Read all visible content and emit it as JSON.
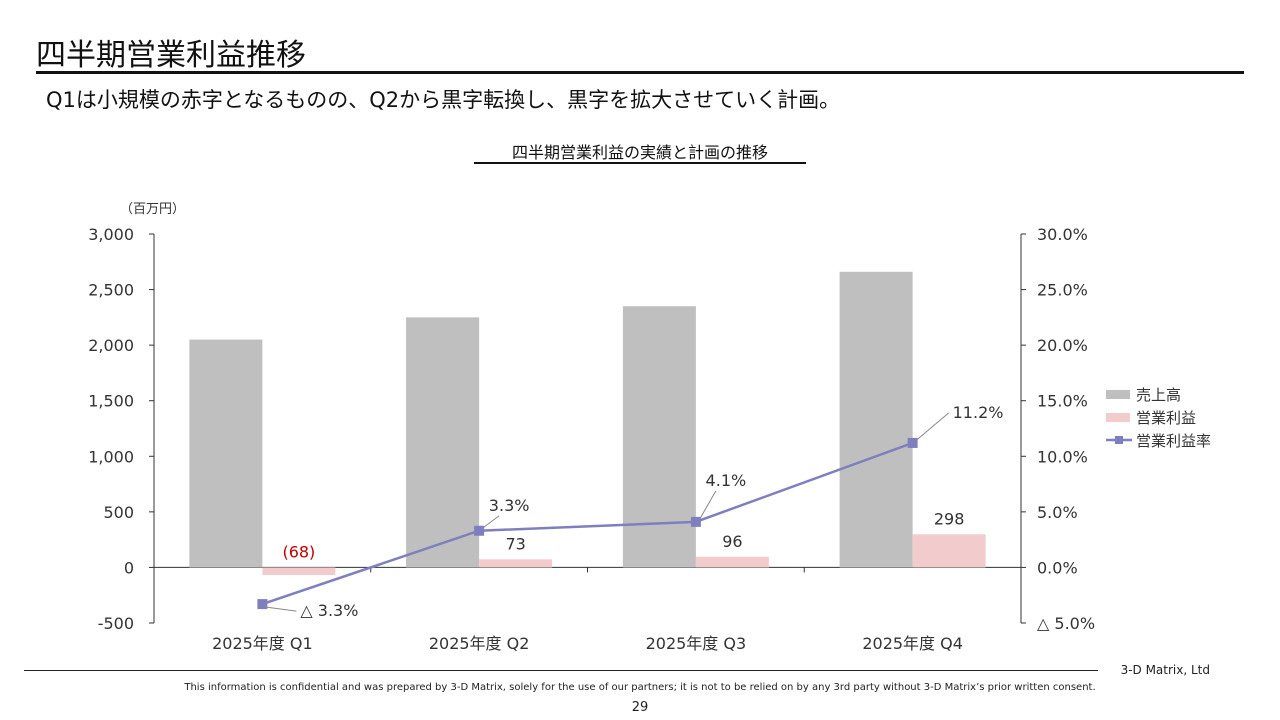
{
  "page": {
    "title": "四半期営業利益推移",
    "subtitle": "Q1は小規模の赤字となるものの、Q2から黒字転換し、黒字を拡大させていく計画。",
    "footer_company": "3-D Matrix, Ltd",
    "confidential": "This information is confidential and was prepared by 3-D Matrix, solely for the use of our partners; it is not to be relied on by any 3rd party without 3-D Matrix’s prior written consent.",
    "page_number": "29"
  },
  "chart_data": {
    "type": "bar",
    "title": "四半期営業利益の実績と計画の推移",
    "unit_label": "（百万円）",
    "categories": [
      "2025年度 Q1",
      "2025年度 Q2",
      "2025年度 Q3",
      "2025年度 Q4"
    ],
    "left_axis": {
      "ylim": [
        -500,
        3000
      ],
      "ticks": [
        -500,
        0,
        500,
        1000,
        1500,
        2000,
        2500,
        3000
      ],
      "tick_labels": [
        "-500",
        "0",
        "500",
        "1,000",
        "1,500",
        "2,000",
        "2,500",
        "3,000"
      ]
    },
    "right_axis": {
      "ylim": [
        -5,
        30
      ],
      "ticks": [
        -5,
        0,
        5,
        10,
        15,
        20,
        25,
        30
      ],
      "tick_labels": [
        "△ 5.0%",
        "0.0%",
        "5.0%",
        "10.0%",
        "15.0%",
        "20.0%",
        "25.0%",
        "30.0%"
      ]
    },
    "series": [
      {
        "name": "売上高",
        "kind": "bar",
        "axis": "left",
        "color": "#bfbfbf",
        "values": [
          2050,
          2250,
          2350,
          2660
        ]
      },
      {
        "name": "営業利益",
        "kind": "bar",
        "axis": "left",
        "color": "#f2cccc",
        "values": [
          -68,
          73,
          96,
          298
        ],
        "labels": [
          "(68)",
          "73",
          "96",
          "298"
        ],
        "label_colors": [
          "#c00000",
          "#333333",
          "#333333",
          "#333333"
        ]
      },
      {
        "name": "営業利益率",
        "kind": "line",
        "axis": "right",
        "color": "#7f7fbf",
        "values": [
          -3.3,
          3.3,
          4.1,
          11.2
        ],
        "labels": [
          "△ 3.3%",
          "3.3%",
          "4.1%",
          "11.2%"
        ]
      }
    ],
    "legend_position": "right",
    "grid": false
  }
}
